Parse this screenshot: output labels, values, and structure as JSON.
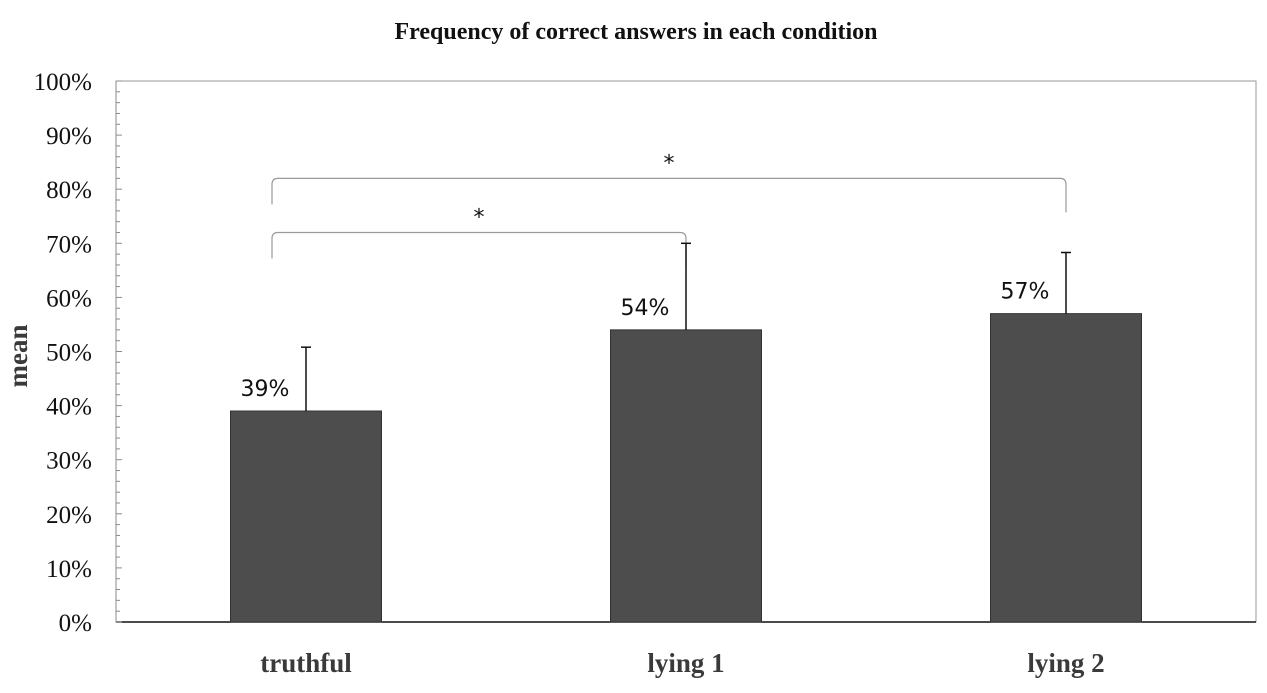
{
  "chart_data": {
    "type": "bar",
    "title": "Frequency of correct answers in each condition",
    "xlabel": "",
    "ylabel": "mean",
    "categories": [
      "truthful",
      "lying 1",
      "lying 2"
    ],
    "values": [
      39,
      54,
      57
    ],
    "error_plus": [
      11.8,
      16,
      11.3
    ],
    "data_labels": [
      "39%",
      "54%",
      "57%"
    ],
    "ylim": [
      0,
      100
    ],
    "yticks": [
      0,
      10,
      20,
      30,
      40,
      50,
      60,
      70,
      80,
      90,
      100
    ],
    "ytick_labels": [
      "0%",
      "10%",
      "20%",
      "30%",
      "40%",
      "50%",
      "60%",
      "70%",
      "80%",
      "90%",
      "100%"
    ],
    "grid": false,
    "bar_color": "#4d4d4d",
    "significance": [
      {
        "from": "truthful",
        "to": "lying 1",
        "label": "*"
      },
      {
        "from": "truthful",
        "to": "lying 2",
        "label": "*"
      }
    ]
  }
}
